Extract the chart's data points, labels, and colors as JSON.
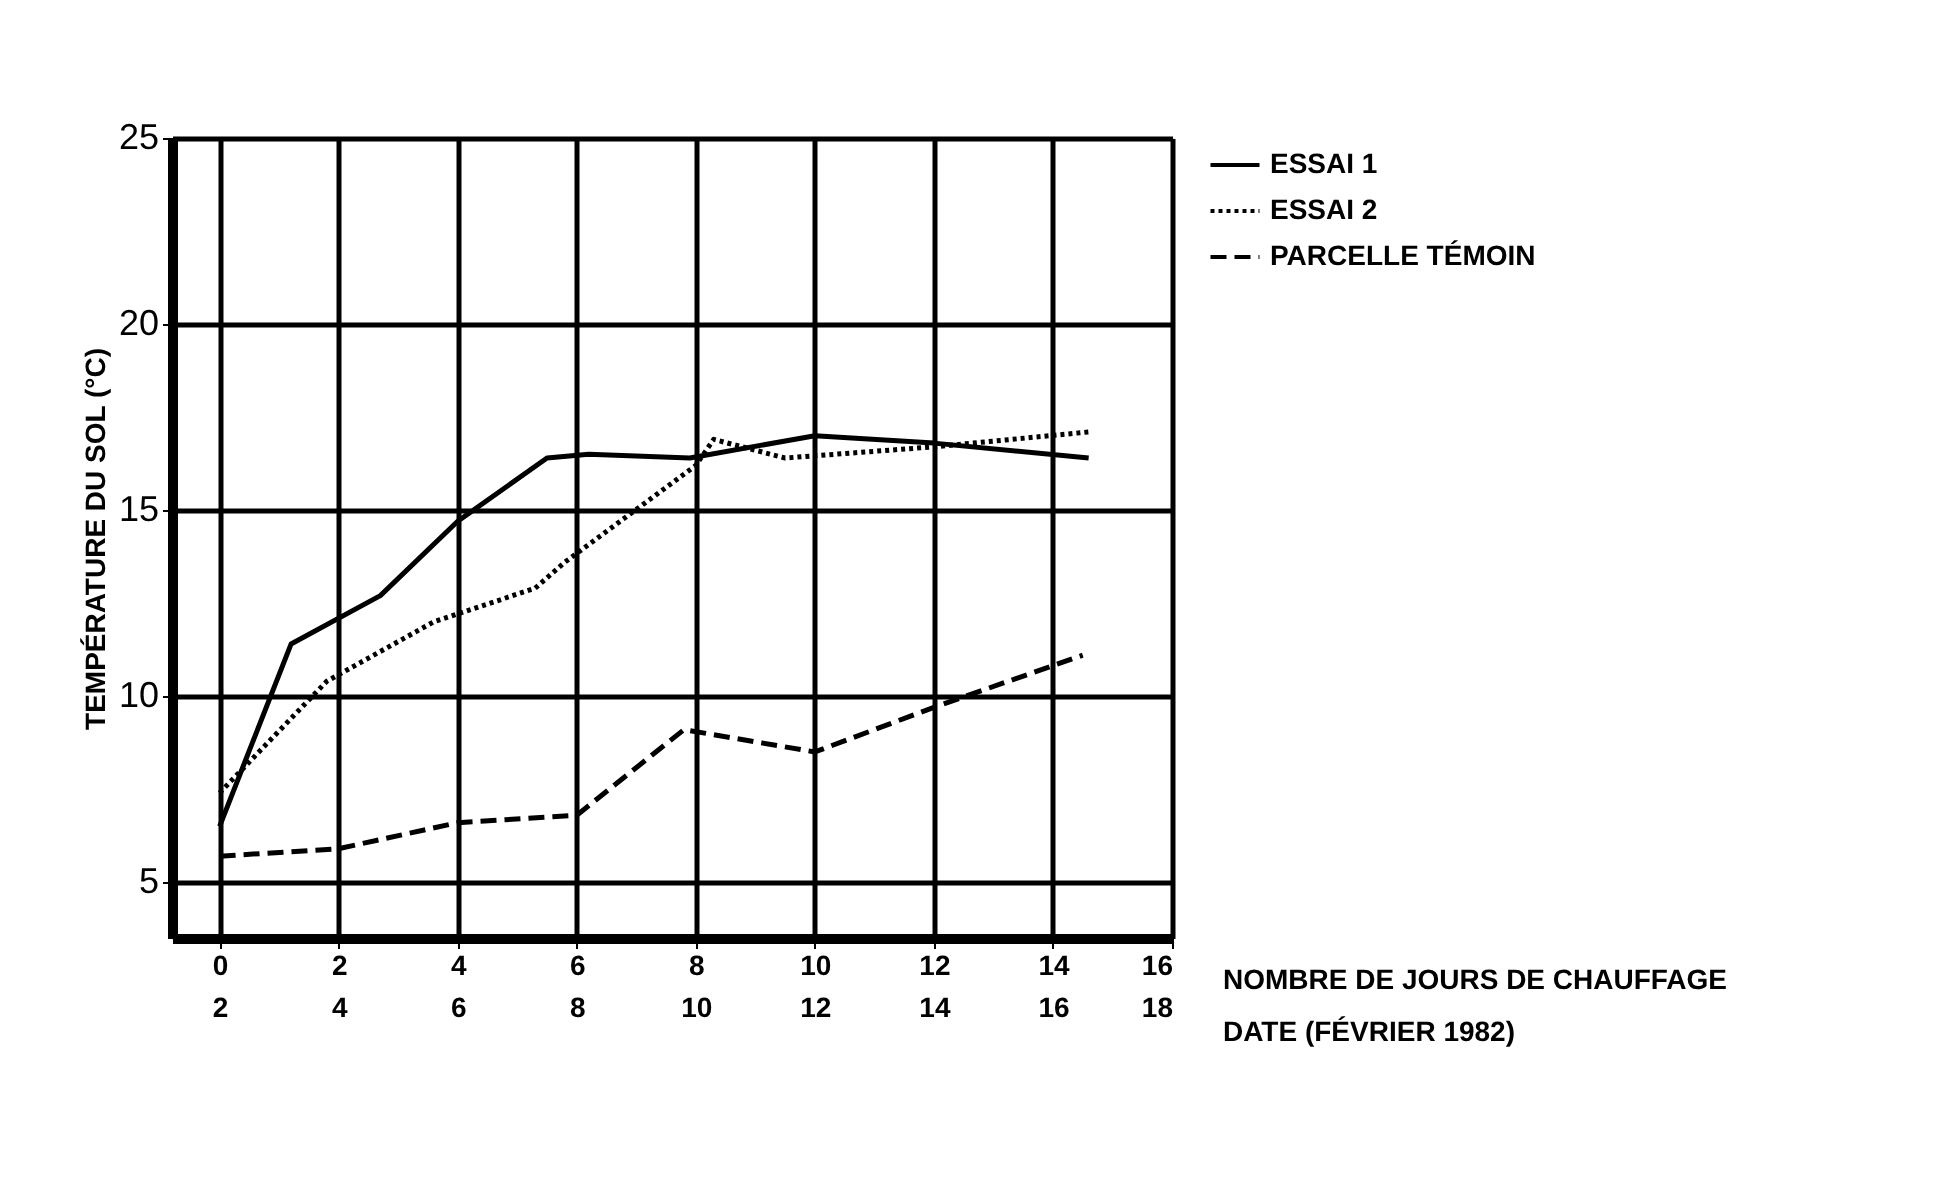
{
  "chart_data": {
    "type": "line",
    "xlabel": "NOMBRE DE JOURS DE CHAUFFAGE",
    "x2label": "DATE (FÉVRIER 1982)",
    "ylabel": "TEMPÉRATURE DU SOL (°C)",
    "xlim": [
      -0.8,
      16
    ],
    "xticks": [
      0,
      2,
      4,
      6,
      8,
      10,
      12,
      14,
      16
    ],
    "x2lim": [
      1.2,
      18
    ],
    "x2ticks": [
      2,
      4,
      6,
      8,
      10,
      12,
      14,
      16,
      18
    ],
    "ylim": [
      3.5,
      25
    ],
    "yticks": [
      5,
      10,
      15,
      20,
      25
    ],
    "grid": true,
    "legend": "top right",
    "series": [
      {
        "name": "ESSAI 1",
        "color": "#000000",
        "line_style": "solid",
        "x": [
          0,
          1.2,
          2.7,
          4,
          5.5,
          6.2,
          7.9,
          10,
          12,
          14.6
        ],
        "values": [
          6.5,
          11.4,
          12.7,
          14.7,
          16.4,
          16.5,
          16.4,
          17.0,
          16.8,
          16.4
        ]
      },
      {
        "name": "ESSAI 2",
        "color": "#000000",
        "line_style": "dotted",
        "x": [
          0,
          1.8,
          3.6,
          5.3,
          5.8,
          8,
          8.3,
          9.5,
          12,
          14.6
        ],
        "values": [
          7.4,
          10.4,
          12.0,
          12.9,
          13.6,
          16.2,
          16.9,
          16.4,
          16.7,
          17.1
        ]
      },
      {
        "name": "PARCELLE TÉMOIN",
        "color": "#000000",
        "line_style": "dashed",
        "x": [
          0,
          2,
          4,
          6,
          7.8,
          10,
          12,
          14.5
        ],
        "values": [
          5.7,
          5.9,
          6.6,
          6.8,
          9.1,
          8.5,
          9.7,
          11.1
        ]
      }
    ]
  }
}
